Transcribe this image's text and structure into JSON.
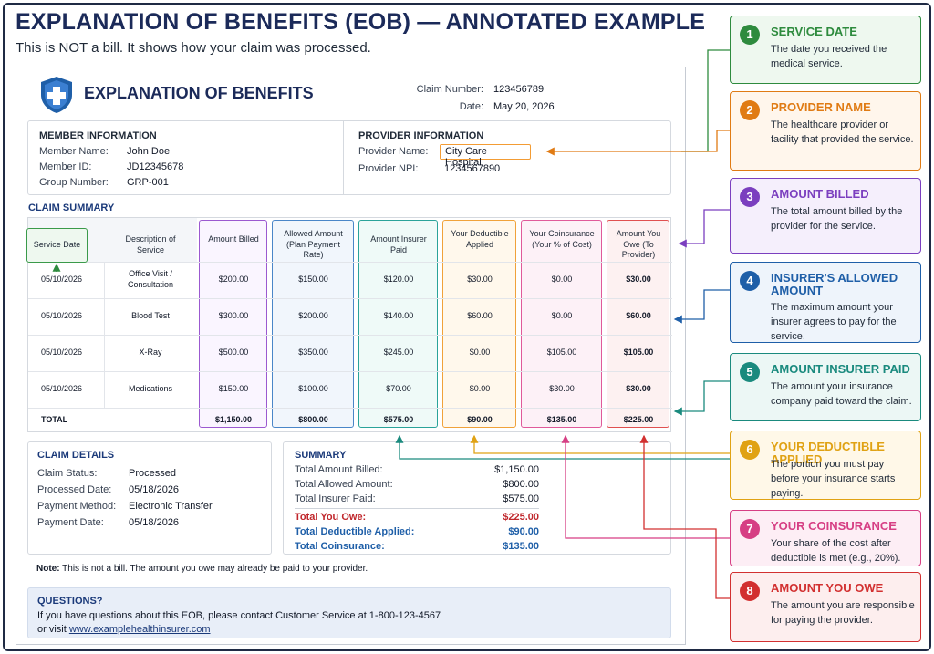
{
  "header": {
    "title": "EXPLANATION OF BENEFITS (EOB) — ANNOTATED EXAMPLE",
    "subtitle": "This is NOT a bill. It shows how your claim was processed."
  },
  "doc": {
    "title": "EXPLANATION OF BENEFITS",
    "claim_number_label": "Claim Number:",
    "claim_number": "123456789",
    "date_label": "Date:",
    "date": "May 20, 2026"
  },
  "member": {
    "heading": "MEMBER INFORMATION",
    "name_label": "Member Name:",
    "name": "John Doe",
    "id_label": "Member ID:",
    "id": "JD12345678",
    "group_label": "Group Number:",
    "group": "GRP-001"
  },
  "provider": {
    "heading": "PROVIDER INFORMATION",
    "name_label": "Provider Name:",
    "name": "City Care Hospital",
    "npi_label": "Provider NPI:",
    "npi": "1234567890"
  },
  "claim_summary": {
    "heading": "CLAIM SUMMARY",
    "columns": [
      "Service Date",
      "Description of Service",
      "Amount Billed",
      "Allowed Amount (Plan Payment Rate)",
      "Amount Insurer Paid",
      "Your Deductible Applied",
      "Your Coinsurance (Your % of Cost)",
      "Amount You Owe (To Provider)"
    ],
    "rows": [
      [
        "05/10/2026",
        "Office Visit / Consultation",
        "$200.00",
        "$150.00",
        "$120.00",
        "$30.00",
        "$0.00",
        "$30.00"
      ],
      [
        "05/10/2026",
        "Blood Test",
        "$300.00",
        "$200.00",
        "$140.00",
        "$60.00",
        "$0.00",
        "$60.00"
      ],
      [
        "05/10/2026",
        "X-Ray",
        "$500.00",
        "$350.00",
        "$245.00",
        "$0.00",
        "$105.00",
        "$105.00"
      ],
      [
        "05/10/2026",
        "Medications",
        "$150.00",
        "$100.00",
        "$70.00",
        "$0.00",
        "$30.00",
        "$30.00"
      ]
    ],
    "total": [
      "TOTAL",
      "$1,150.00",
      "$800.00",
      "$575.00",
      "$90.00",
      "$135.00",
      "$225.00"
    ]
  },
  "claim_details": {
    "heading": "CLAIM DETAILS",
    "status_label": "Claim Status:",
    "status": "Processed",
    "processed_label": "Processed Date:",
    "processed": "05/18/2026",
    "method_label": "Payment Method:",
    "method": "Electronic Transfer",
    "payment_label": "Payment Date:",
    "payment": "05/18/2026"
  },
  "summary": {
    "heading": "SUMMARY",
    "billed_label": "Total Amount Billed:",
    "billed": "$1,150.00",
    "allowed_label": "Total Allowed Amount:",
    "allowed": "$800.00",
    "paid_label": "Total Insurer Paid:",
    "paid": "$575.00",
    "owe_label": "Total You Owe:",
    "owe": "$225.00",
    "deductible_label": "Total Deductible Applied:",
    "deductible": "$90.00",
    "coins_label": "Total Coinsurance:",
    "coins": "$135.00"
  },
  "note": {
    "label": "Note:",
    "text": " This is not a bill. The amount you owe may already be paid to your provider."
  },
  "questions": {
    "heading": "QUESTIONS?",
    "line1": "If you have questions about this EOB, please contact Customer Service at 1-800-123-4567",
    "line2_prefix": "or visit ",
    "link": "www.examplehealthinsurer.com"
  },
  "annotations": [
    {
      "num": "1",
      "title": "SERVICE DATE",
      "desc": "The date you received the medical service.",
      "color": "#2e8b3e",
      "bg": "#eef8ef"
    },
    {
      "num": "2",
      "title": "PROVIDER NAME",
      "desc": "The healthcare provider or facility that provided the service.",
      "color": "#e07b14",
      "bg": "#fff6ec"
    },
    {
      "num": "3",
      "title": "AMOUNT BILLED",
      "desc": "The total amount billed by the provider for the service.",
      "color": "#7b3fbf",
      "bg": "#f5effc"
    },
    {
      "num": "4",
      "title": "INSURER'S ALLOWED AMOUNT",
      "desc": "The maximum amount your insurer agrees to pay for the service.",
      "color": "#1f5fa8",
      "bg": "#eef4fb"
    },
    {
      "num": "5",
      "title": "AMOUNT INSURER PAID",
      "desc": "The amount your insurance company paid toward the claim.",
      "color": "#1a8a7e",
      "bg": "#ecf7f5"
    },
    {
      "num": "6",
      "title": "YOUR DEDUCTIBLE APPLIED",
      "desc": "The portion you must pay before your insurance starts paying.",
      "color": "#e0a214",
      "bg": "#fff8e8"
    },
    {
      "num": "7",
      "title": "YOUR COINSURANCE",
      "desc": "Your share of the cost after deductible is met (e.g., 20%).",
      "color": "#d63f84",
      "bg": "#fdeef5"
    },
    {
      "num": "8",
      "title": "AMOUNT YOU OWE",
      "desc": "The amount you are responsible for paying the provider.",
      "color": "#d23030",
      "bg": "#fdeeee"
    }
  ]
}
